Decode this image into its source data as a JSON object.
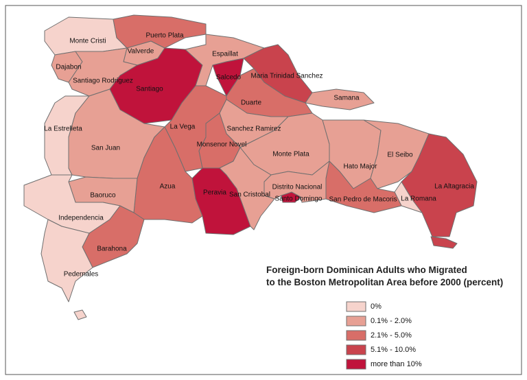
{
  "title": [
    "Foreign-born Dominican Adults who Migrated",
    "to the Boston Metropolitan Area before 2000 (percent)"
  ],
  "legend": [
    {
      "label": "0%",
      "color": "#f6d3cc"
    },
    {
      "label": "0.1% - 2.0%",
      "color": "#e7a094"
    },
    {
      "label": "2.1% - 5.0%",
      "color": "#d86e68"
    },
    {
      "label": "5.1% - 10.0%",
      "color": "#c9434d"
    },
    {
      "label": "more than 10%",
      "color": "#c0133b"
    }
  ],
  "regions": [
    {
      "name": "Monte Cristi",
      "class": 0
    },
    {
      "name": "Puerto Plata",
      "class": 2
    },
    {
      "name": "Valverde",
      "class": 1
    },
    {
      "name": "Dajabon",
      "class": 1
    },
    {
      "name": "Santiago Rodriguez",
      "class": 1
    },
    {
      "name": "Santiago",
      "class": 4
    },
    {
      "name": "Espaillat",
      "class": 1
    },
    {
      "name": "Salcedo",
      "class": 4
    },
    {
      "name": "Maria Trinidad Sanchez",
      "class": 3
    },
    {
      "name": "Samana",
      "class": 1
    },
    {
      "name": "Duarte",
      "class": 2
    },
    {
      "name": "La Vega",
      "class": 2
    },
    {
      "name": "Sanchez Ramirez",
      "class": 1
    },
    {
      "name": "Monsenor Novel",
      "class": 2
    },
    {
      "name": "La Estrelleta",
      "class": 0
    },
    {
      "name": "San Juan",
      "class": 1
    },
    {
      "name": "Monte Plata",
      "class": 1
    },
    {
      "name": "Hato Major",
      "class": 1
    },
    {
      "name": "El Seibo",
      "class": 1
    },
    {
      "name": "La Altagracia",
      "class": 3
    },
    {
      "name": "La Romana",
      "class": 0
    },
    {
      "name": "San Pedro de Macoris",
      "class": 2
    },
    {
      "name": "Distrito Nacional",
      "class": 4
    },
    {
      "name": "Santo Domingo",
      "class": 1
    },
    {
      "name": "Peravia",
      "class": 4
    },
    {
      "name": "San Cristobal",
      "class": 1
    },
    {
      "name": "Azua",
      "class": 2
    },
    {
      "name": "Baoruco",
      "class": 1
    },
    {
      "name": "Independencia",
      "class": 0
    },
    {
      "name": "Barahona",
      "class": 2
    },
    {
      "name": "Pedernales",
      "class": 0
    }
  ]
}
